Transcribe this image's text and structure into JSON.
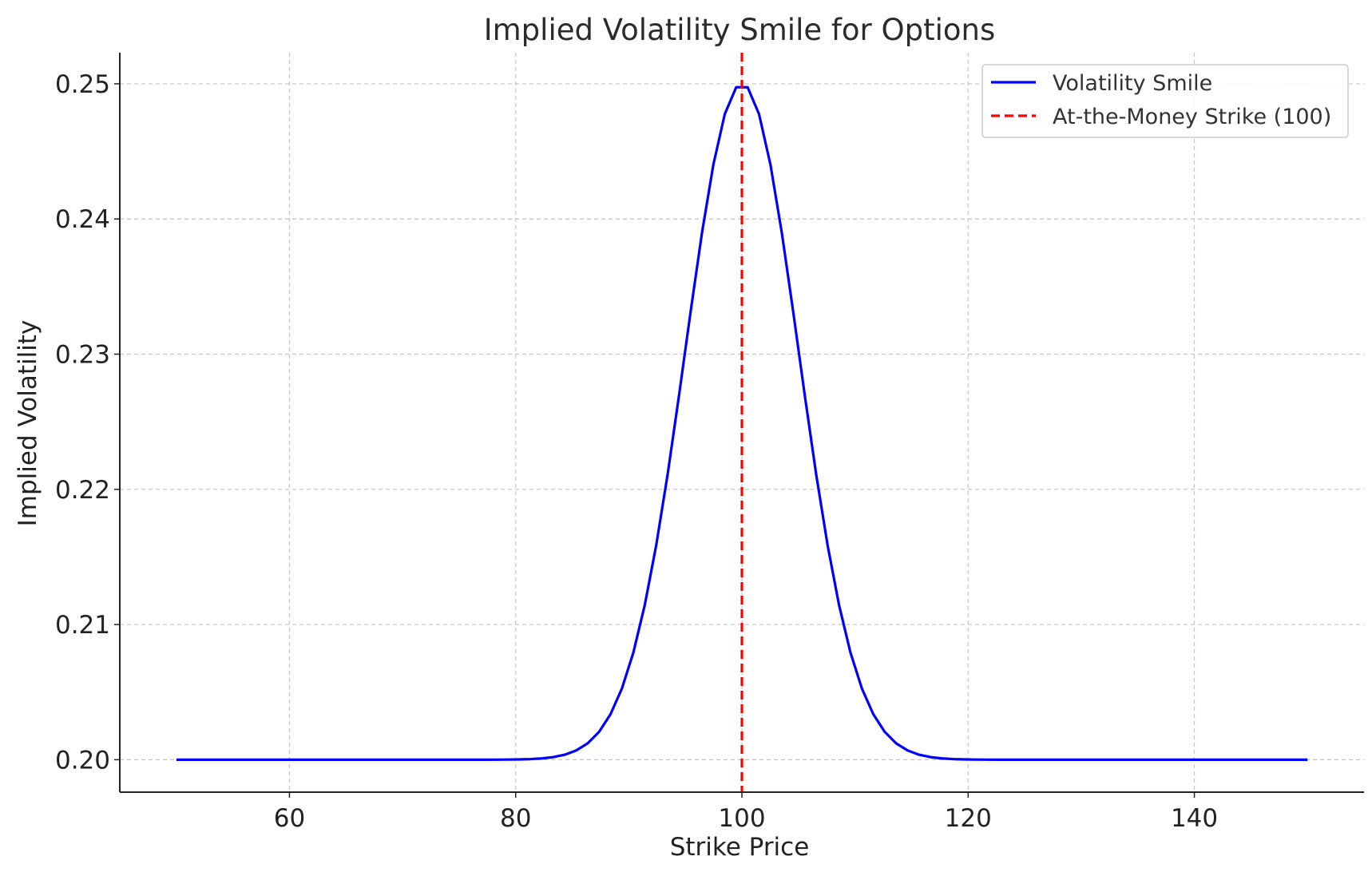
{
  "chart_data": {
    "type": "line",
    "title": "Implied Volatility Smile for Options",
    "xlabel": "Strike Price",
    "ylabel": "Implied Volatility",
    "xlim": [
      45,
      155
    ],
    "ylim": [
      0.1976,
      0.2523
    ],
    "xticks": [
      60,
      80,
      100,
      120,
      140
    ],
    "xtick_labels": [
      "60",
      "80",
      "100",
      "120",
      "140"
    ],
    "yticks": [
      0.2,
      0.21,
      0.22,
      0.23,
      0.24,
      0.25
    ],
    "ytick_labels": [
      "0.20",
      "0.21",
      "0.22",
      "0.23",
      "0.24",
      "0.25"
    ],
    "grid": true,
    "legend_position": "top-right",
    "series": [
      {
        "name": "Volatility Smile",
        "color": "#0000ff",
        "style": "solid",
        "model": {
          "base": 0.2,
          "amplitude": 0.05,
          "center": 100,
          "sigma": 5,
          "x_start": 50,
          "x_end": 150,
          "points": 100
        }
      }
    ],
    "reference_lines": [
      {
        "name": "At-the-Money Strike (100)",
        "x": 100,
        "color": "#ff0000",
        "style": "dashed"
      }
    ]
  }
}
